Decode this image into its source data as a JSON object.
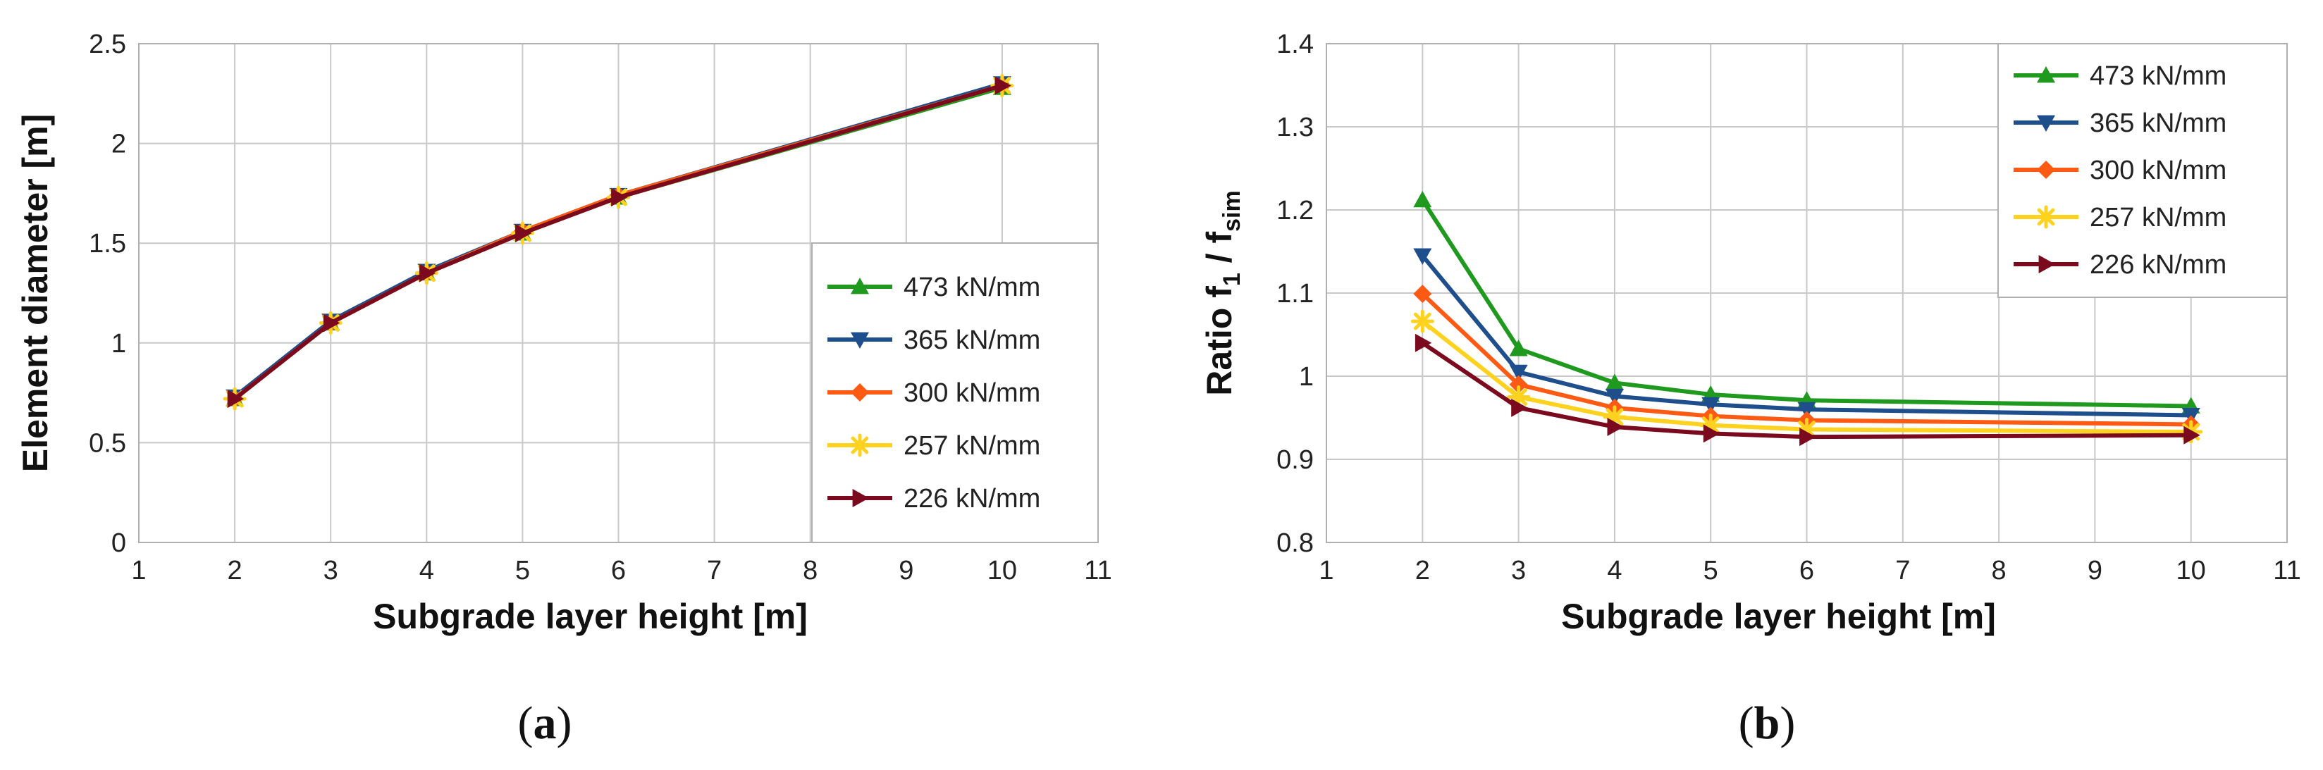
{
  "chart_data": [
    {
      "type": "line",
      "panel": "a",
      "title": "",
      "xlabel": "Subgrade layer height  [m]",
      "ylabel": "Element diameter  [m]",
      "xlim": [
        1,
        11
      ],
      "ylim": [
        0,
        2.5
      ],
      "xticks": [
        1,
        2,
        3,
        4,
        5,
        6,
        7,
        8,
        9,
        10,
        11
      ],
      "yticks": [
        0,
        0.5,
        1,
        1.5,
        2,
        2.5
      ],
      "ytick_labels": [
        "0",
        "0.5",
        "1",
        "1.5",
        "2",
        "2.5"
      ],
      "grid": true,
      "legend_position": "lower-right",
      "x": [
        2,
        3,
        4,
        5,
        6,
        10
      ],
      "series": [
        {
          "name": "473 kN/mm",
          "color": "#1f9a1f",
          "marker": "triangle-up",
          "values": [
            0.72,
            1.1,
            1.35,
            1.55,
            1.73,
            2.28
          ]
        },
        {
          "name": "365 kN/mm",
          "color": "#1f4e8c",
          "marker": "triangle-down",
          "values": [
            0.73,
            1.11,
            1.36,
            1.56,
            1.74,
            2.3
          ]
        },
        {
          "name": "300 kN/mm",
          "color": "#ff5a14",
          "marker": "diamond",
          "values": [
            0.72,
            1.1,
            1.35,
            1.56,
            1.74,
            2.29
          ]
        },
        {
          "name": "257 kN/mm",
          "color": "#ffd21f",
          "marker": "star",
          "values": [
            0.72,
            1.1,
            1.35,
            1.55,
            1.73,
            2.29
          ]
        },
        {
          "name": "226 kN/mm",
          "color": "#7b0a1e",
          "marker": "triangle-right",
          "values": [
            0.72,
            1.1,
            1.35,
            1.55,
            1.73,
            2.29
          ]
        }
      ]
    },
    {
      "type": "line",
      "panel": "b",
      "title": "",
      "xlabel": "Subgrade layer height  [m]",
      "ylabel": "Ratio f1 / fsim",
      "ylabel_parts": {
        "main": "Ratio f",
        "sub1": "1",
        "mid": " / f",
        "sub2": "sim"
      },
      "xlim": [
        1,
        11
      ],
      "ylim": [
        0.8,
        1.4
      ],
      "xticks": [
        1,
        2,
        3,
        4,
        5,
        6,
        7,
        8,
        9,
        10,
        11
      ],
      "yticks": [
        0.8,
        0.9,
        1.0,
        1.1,
        1.2,
        1.3,
        1.4
      ],
      "ytick_labels": [
        "0.8",
        "0.9",
        "1",
        "1.1",
        "1.2",
        "1.3",
        "1.4"
      ],
      "grid": true,
      "legend_position": "top-right",
      "x": [
        2,
        3,
        4,
        5,
        6,
        10
      ],
      "series": [
        {
          "name": "473 kN/mm",
          "color": "#1f9a1f",
          "marker": "triangle-up",
          "values": [
            1.212,
            1.033,
            0.992,
            0.978,
            0.971,
            0.964
          ]
        },
        {
          "name": "365 kN/mm",
          "color": "#1f4e8c",
          "marker": "triangle-down",
          "values": [
            1.145,
            1.005,
            0.976,
            0.966,
            0.96,
            0.953
          ]
        },
        {
          "name": "300 kN/mm",
          "color": "#ff5a14",
          "marker": "diamond",
          "values": [
            1.099,
            0.99,
            0.962,
            0.952,
            0.947,
            0.942
          ]
        },
        {
          "name": "257 kN/mm",
          "color": "#ffd21f",
          "marker": "star",
          "values": [
            1.066,
            0.975,
            0.951,
            0.941,
            0.936,
            0.933
          ]
        },
        {
          "name": "226 kN/mm",
          "color": "#7b0a1e",
          "marker": "triangle-right",
          "values": [
            1.04,
            0.962,
            0.939,
            0.931,
            0.927,
            0.929
          ]
        }
      ]
    }
  ],
  "captions": {
    "a": {
      "open": "(",
      "letter": "a",
      "close": ")"
    },
    "b": {
      "open": "(",
      "letter": "b",
      "close": ")"
    }
  }
}
